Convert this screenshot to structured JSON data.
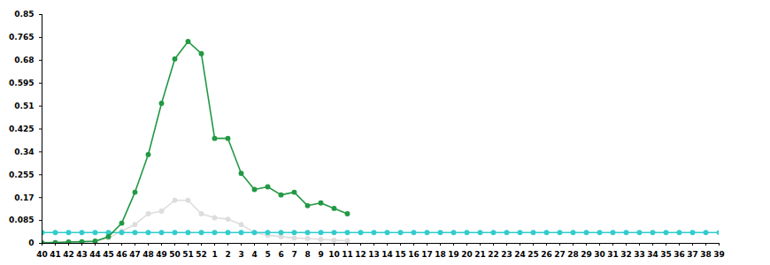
{
  "chart_data": {
    "type": "line",
    "categories": [
      "40",
      "41",
      "42",
      "43",
      "44",
      "45",
      "46",
      "47",
      "48",
      "49",
      "50",
      "51",
      "52",
      "1",
      "2",
      "3",
      "4",
      "5",
      "6",
      "7",
      "8",
      "9",
      "10",
      "11",
      "12",
      "13",
      "14",
      "15",
      "16",
      "17",
      "18",
      "19",
      "20",
      "21",
      "22",
      "23",
      "24",
      "25",
      "26",
      "27",
      "28",
      "29",
      "30",
      "31",
      "32",
      "33",
      "34",
      "35",
      "36",
      "37",
      "38",
      "39"
    ],
    "series": [
      {
        "color": "#dddddd",
        "marker": "circle",
        "values": [
          0.002,
          0.003,
          0.004,
          0.005,
          0.006,
          0.02,
          0.045,
          0.07,
          0.11,
          0.12,
          0.16,
          0.16,
          0.11,
          0.095,
          0.09,
          0.07,
          0.04,
          0.03,
          0.025,
          0.02,
          0.018,
          0.015,
          0.012,
          0.01,
          null,
          null,
          null,
          null,
          null,
          null,
          null,
          null,
          null,
          null,
          null,
          null,
          null,
          null,
          null,
          null,
          null,
          null,
          null,
          null,
          null,
          null,
          null,
          null,
          null,
          null,
          null,
          null
        ]
      },
      {
        "color": "#33cccc",
        "marker": "circle",
        "values": [
          0.04,
          0.04,
          0.04,
          0.04,
          0.04,
          0.04,
          0.04,
          0.04,
          0.04,
          0.04,
          0.04,
          0.04,
          0.04,
          0.04,
          0.04,
          0.04,
          0.04,
          0.04,
          0.04,
          0.04,
          0.04,
          0.04,
          0.04,
          0.04,
          0.04,
          0.04,
          0.04,
          0.04,
          0.04,
          0.04,
          0.04,
          0.04,
          0.04,
          0.04,
          0.04,
          0.04,
          0.04,
          0.04,
          0.04,
          0.04,
          0.04,
          0.04,
          0.04,
          0.04,
          0.04,
          0.04,
          0.04,
          0.04,
          0.04,
          0.04,
          0.04,
          0.04
        ]
      },
      {
        "color": "#229944",
        "marker": "circle",
        "values": [
          0.002,
          0.003,
          0.005,
          0.006,
          0.008,
          0.025,
          0.075,
          0.19,
          0.33,
          0.52,
          0.685,
          0.75,
          0.705,
          0.39,
          0.39,
          0.26,
          0.2,
          0.21,
          0.18,
          0.19,
          0.14,
          0.15,
          0.13,
          0.11,
          null,
          null,
          null,
          null,
          null,
          null,
          null,
          null,
          null,
          null,
          null,
          null,
          null,
          null,
          null,
          null,
          null,
          null,
          null,
          null,
          null,
          null,
          null,
          null,
          null,
          null,
          null,
          null
        ]
      }
    ],
    "ylim": [
      0,
      0.85
    ],
    "yticks": [
      0,
      0.085,
      0.17,
      0.255,
      0.34,
      0.425,
      0.51,
      0.595,
      0.68,
      0.765,
      0.85
    ],
    "grid": false
  }
}
